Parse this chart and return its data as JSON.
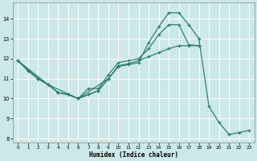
{
  "xlabel": "Humidex (Indice chaleur)",
  "xlim": [
    -0.5,
    23.5
  ],
  "ylim": [
    7.8,
    14.8
  ],
  "yticks": [
    8,
    9,
    10,
    11,
    12,
    13,
    14
  ],
  "xticks": [
    0,
    1,
    2,
    3,
    4,
    5,
    6,
    7,
    8,
    9,
    10,
    11,
    12,
    13,
    14,
    15,
    16,
    17,
    18,
    19,
    20,
    21,
    22,
    23
  ],
  "bg_color": "#cce8e8",
  "line_color": "#2a7a6a",
  "grid_color": "#ffffff",
  "line1_x": [
    0,
    1,
    2,
    3,
    4,
    5,
    6,
    7,
    8,
    9,
    10,
    11,
    12,
    13,
    14,
    15,
    16,
    17,
    18,
    19,
    20,
    21,
    22,
    23
  ],
  "line1_y": [
    11.9,
    11.4,
    11.0,
    10.7,
    10.3,
    10.2,
    10.0,
    10.2,
    10.4,
    11.0,
    11.6,
    11.7,
    11.8,
    12.8,
    13.6,
    14.3,
    14.3,
    13.7,
    13.0,
    9.6,
    8.8,
    8.2,
    8.3,
    8.4
  ],
  "line2_x": [
    0,
    2,
    3,
    4,
    5,
    6,
    7,
    8,
    9,
    10,
    11,
    12,
    13,
    14,
    15,
    16,
    17,
    18
  ],
  "line2_y": [
    11.9,
    11.0,
    10.7,
    10.3,
    10.2,
    10.0,
    10.5,
    10.5,
    11.2,
    11.8,
    11.9,
    12.0,
    12.5,
    13.2,
    13.7,
    13.7,
    12.7,
    12.65
  ],
  "line3_x": [
    0,
    1,
    2,
    3,
    4,
    5,
    6,
    7,
    8,
    9,
    10,
    11,
    12,
    13,
    14,
    15,
    16,
    17,
    18
  ],
  "line3_y": [
    11.9,
    11.4,
    11.0,
    10.7,
    10.3,
    10.2,
    10.0,
    10.2,
    10.4,
    11.0,
    11.65,
    11.75,
    11.9,
    12.1,
    12.3,
    12.5,
    12.65,
    12.65,
    12.65
  ],
  "line4_x": [
    0,
    3,
    6,
    9
  ],
  "line4_y": [
    11.9,
    10.7,
    10.0,
    11.0
  ]
}
